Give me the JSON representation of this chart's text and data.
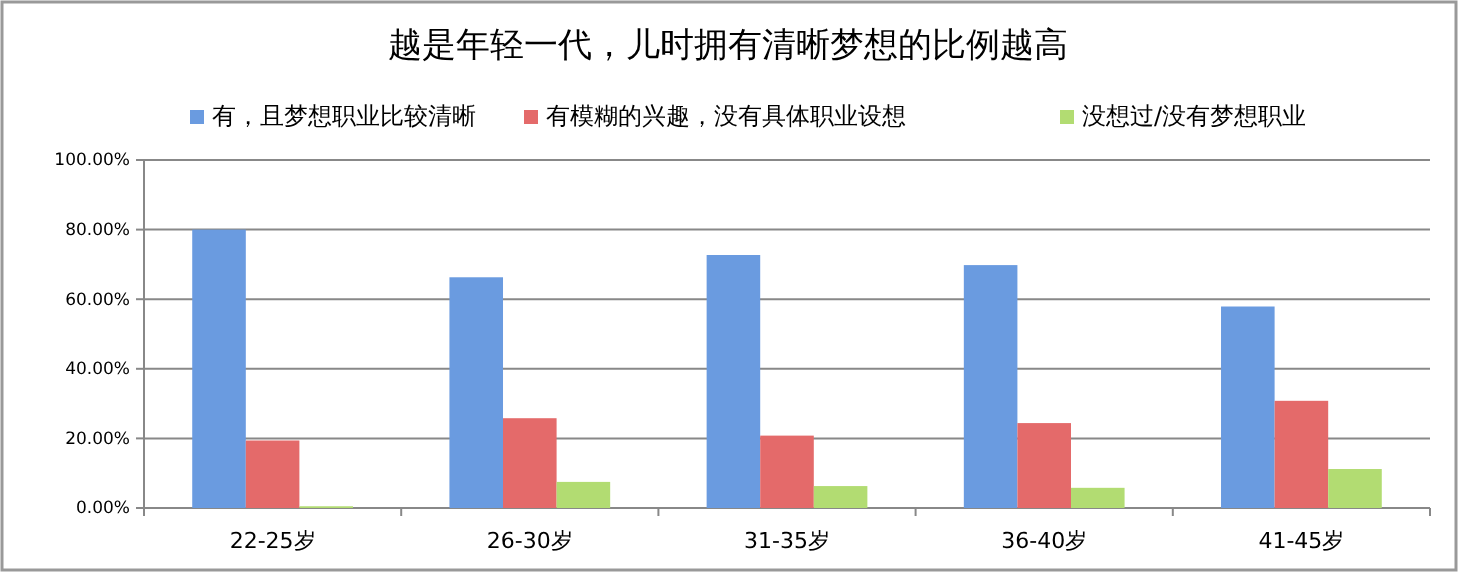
{
  "chart_data": {
    "type": "bar",
    "title": "越是年轻一代，儿时拥有清晰梦想的比例越高",
    "categories": [
      "22-25岁",
      "26-30岁",
      "31-35岁",
      "36-40岁",
      "41-45岁"
    ],
    "series": [
      {
        "name": "有，且梦想职业比较清晰",
        "color": "#6a9be0",
        "values": [
          80,
          66.3,
          72.7,
          69.8,
          57.9
        ]
      },
      {
        "name": "有模糊的兴趣，没有具体职业设想",
        "color": "#e46a6a",
        "values": [
          19.4,
          25.8,
          20.8,
          24.4,
          30.8
        ]
      },
      {
        "name": "没想过/没有梦想职业",
        "color": "#b2dc72",
        "values": [
          0.5,
          7.5,
          6.3,
          5.8,
          11.2
        ]
      }
    ],
    "ylim": [
      0,
      100
    ],
    "yticks": [
      {
        "value": 0,
        "label": "0.00%"
      },
      {
        "value": 20,
        "label": "20.00%"
      },
      {
        "value": 40,
        "label": "40.00%"
      },
      {
        "value": 60,
        "label": "60.00%"
      },
      {
        "value": 80,
        "label": "80.00%"
      },
      {
        "value": 100,
        "label": "100.00%"
      }
    ],
    "grid": "y",
    "legend": "top"
  }
}
